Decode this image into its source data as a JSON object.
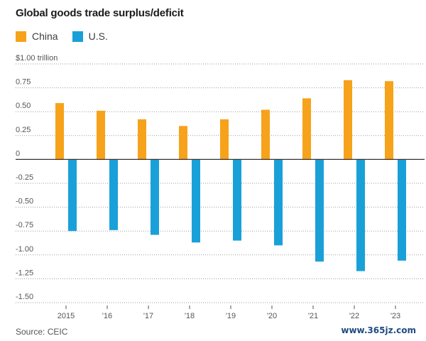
{
  "chart_data": {
    "type": "bar",
    "title": "Global goods trade surplus/deficit",
    "ylabel": "",
    "xlabel": "",
    "categories": [
      "2015",
      "'16",
      "'17",
      "'18",
      "'19",
      "'20",
      "'21",
      "'22",
      "'23"
    ],
    "series": [
      {
        "name": "China",
        "color": "#f7a21b",
        "values": [
          0.59,
          0.51,
          0.42,
          0.35,
          0.42,
          0.52,
          0.64,
          0.83,
          0.82
        ]
      },
      {
        "name": "U.S.",
        "color": "#1aa0d8",
        "values": [
          -0.75,
          -0.74,
          -0.79,
          -0.87,
          -0.85,
          -0.9,
          -1.07,
          -1.17,
          -1.06
        ]
      }
    ],
    "ylim": [
      -1.5,
      1.0
    ],
    "yticks": [
      1.0,
      0.75,
      0.5,
      0.25,
      0,
      -0.25,
      -0.5,
      -0.75,
      -1.0,
      -1.25,
      -1.5
    ],
    "ytick_labels": [
      "$1.00 trillion",
      "0.75",
      "0.50",
      "0.25",
      "0",
      "-0.25",
      "-0.50",
      "-0.75",
      "-1.00",
      "-1.25",
      "-1.50"
    ],
    "grid": true,
    "legend": "top-left"
  },
  "source": "Source: CEIC",
  "watermark": "www.365jz.com"
}
